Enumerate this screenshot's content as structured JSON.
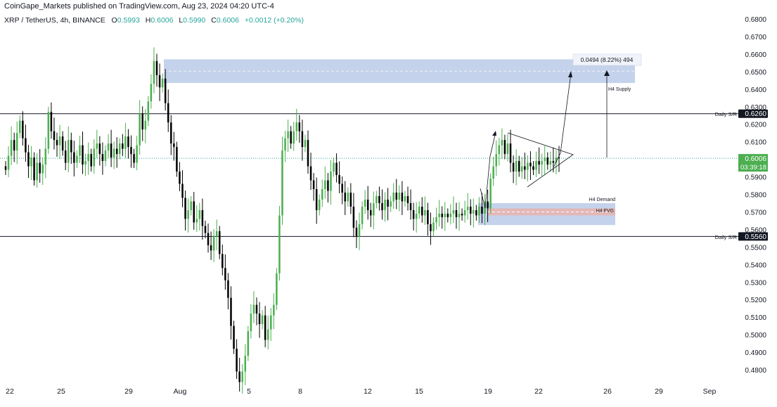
{
  "header": {
    "published": "CoinGape_Markets published on TradingView.com, Aug 23, 2024 04:20 UTC-4",
    "symbol": "XRP / TetherUS, 4h, BINANCE",
    "o_label": "O",
    "o_value": "0.5993",
    "h_label": "H",
    "h_value": "0.6006",
    "l_label": "L",
    "l_value": "0.5990",
    "c_label": "C",
    "c_value": "0.6006",
    "change": "+0.0012 (+0.20%)"
  },
  "colors": {
    "up": "#4caf50",
    "down": "#000000",
    "zone": "#9fb4de",
    "fvg": "#e8b4ae",
    "level_line": "#131722",
    "price_line": "#26a69a"
  },
  "chart_data": {
    "type": "candlestick",
    "symbol": "XRP / TetherUS",
    "timeframe": "4h",
    "exchange": "BINANCE",
    "ylim": [
      0.47,
      0.68
    ],
    "y_ticks": [
      "0.6800",
      "0.6700",
      "0.6600",
      "0.6500",
      "0.6400",
      "0.6300",
      "0.6200",
      "0.6100",
      "0.5900",
      "0.5800",
      "0.5700",
      "0.5600",
      "0.5500",
      "0.5400",
      "0.5300",
      "0.5200",
      "0.5100",
      "0.5000",
      "0.4900",
      "0.4800"
    ],
    "x_ticks": [
      "22",
      "25",
      "29",
      "Aug",
      "5",
      "8",
      "12",
      "15",
      "19",
      "22",
      "26",
      "29",
      "Sep"
    ],
    "last_price": "0.6006",
    "countdown": "03:39:18",
    "levels": [
      {
        "label": "Daily S/R",
        "value": "0.6260"
      },
      {
        "label": "Daily S/R",
        "value": "0.5560"
      }
    ],
    "zones": [
      {
        "label": "H4 Supply",
        "from": 0.6435,
        "to": 0.657
      },
      {
        "label": "H4 Demand",
        "from": 0.5625,
        "to": 0.575
      },
      {
        "label": "H4 FVG",
        "from": 0.568,
        "to": 0.572
      }
    ],
    "measure": "0.0494 (8.22%) 494",
    "closes": [
      0.594,
      0.602,
      0.611,
      0.605,
      0.615,
      0.622,
      0.612,
      0.604,
      0.596,
      0.601,
      0.588,
      0.598,
      0.592,
      0.597,
      0.606,
      0.627,
      0.616,
      0.611,
      0.608,
      0.613,
      0.605,
      0.598,
      0.611,
      0.604,
      0.598,
      0.602,
      0.608,
      0.597,
      0.599,
      0.603,
      0.596,
      0.606,
      0.609,
      0.603,
      0.599,
      0.605,
      0.609,
      0.601,
      0.606,
      0.603,
      0.609,
      0.606,
      0.613,
      0.607,
      0.603,
      0.598,
      0.608,
      0.626,
      0.617,
      0.622,
      0.633,
      0.643,
      0.656,
      0.648,
      0.641,
      0.646,
      0.632,
      0.621,
      0.609,
      0.607,
      0.593,
      0.586,
      0.578,
      0.566,
      0.571,
      0.576,
      0.564,
      0.566,
      0.571,
      0.562,
      0.558,
      0.551,
      0.548,
      0.556,
      0.559,
      0.546,
      0.538,
      0.531,
      0.521,
      0.505,
      0.492,
      0.479,
      0.473,
      0.479,
      0.488,
      0.502,
      0.512,
      0.517,
      0.512,
      0.506,
      0.511,
      0.497,
      0.503,
      0.511,
      0.517,
      0.535,
      0.568,
      0.605,
      0.612,
      0.616,
      0.609,
      0.616,
      0.621,
      0.616,
      0.607,
      0.611,
      0.596,
      0.588,
      0.583,
      0.571,
      0.577,
      0.583,
      0.588,
      0.582,
      0.593,
      0.598,
      0.591,
      0.586,
      0.581,
      0.576,
      0.581,
      0.573,
      0.561,
      0.556,
      0.563,
      0.573,
      0.577,
      0.571,
      0.568,
      0.575,
      0.579,
      0.575,
      0.571,
      0.577,
      0.573,
      0.576,
      0.581,
      0.577,
      0.581,
      0.576,
      0.579,
      0.575,
      0.571,
      0.566,
      0.569,
      0.573,
      0.568,
      0.571,
      0.563,
      0.559,
      0.564,
      0.567,
      0.569,
      0.567,
      0.569,
      0.567,
      0.569,
      0.571,
      0.567,
      0.569,
      0.568,
      0.571,
      0.573,
      0.569,
      0.571,
      0.568,
      0.573,
      0.569,
      0.576,
      0.572,
      0.589,
      0.596,
      0.603,
      0.608,
      0.611,
      0.603,
      0.609,
      0.598,
      0.593,
      0.599,
      0.593,
      0.596,
      0.594,
      0.598,
      0.596,
      0.594,
      0.599,
      0.597,
      0.599,
      0.601,
      0.597,
      0.599,
      0.598,
      0.601,
      0.6006
    ]
  }
}
